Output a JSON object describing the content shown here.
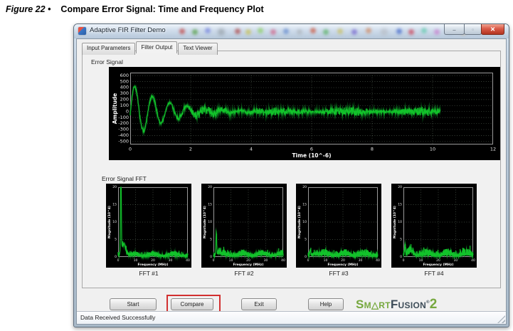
{
  "figure": {
    "label": "Figure 22 •",
    "title": "Compare Error Signal: Time and Frequency Plot"
  },
  "window": {
    "title": "Adaptive FIR Filter Demo",
    "controls": {
      "minimize": "–",
      "maximize": "▫",
      "close": "✕"
    },
    "tabs": [
      {
        "label": "Input Parameters",
        "active": false
      },
      {
        "label": "Filter Output",
        "active": true
      },
      {
        "label": "Text Viewer",
        "active": false
      }
    ],
    "sections": {
      "time_plot_label": "Error Signal",
      "fft_label": "Error Signal FFT"
    },
    "fft_captions": [
      "FFT #1",
      "FFT #2",
      "FFT #3",
      "FFT #4"
    ],
    "buttons": {
      "start": "Start",
      "compare": "Compare",
      "exit": "Exit",
      "help": "Help",
      "highlight_color": "#d23030"
    },
    "logo": {
      "sm": "Sm",
      "tri": "△",
      "rt": "rt",
      "fusion": "Fusion",
      "reg": "®",
      "two": "2",
      "green": "#76a83e",
      "dark": "#3e4d59"
    },
    "statusbar": {
      "text": "Data Received Successfully"
    }
  },
  "chart_data": [
    {
      "id": "error-signal-time",
      "type": "line",
      "title": "Error Signal",
      "xlabel": "Time (10^-6)",
      "ylabel": "Amplitude",
      "xlim": [
        0,
        12
      ],
      "ylim": [
        -550,
        650
      ],
      "xticks": [
        0,
        2,
        4,
        6,
        8,
        10,
        12
      ],
      "yticks": [
        600,
        500,
        400,
        300,
        200,
        100,
        0,
        -100,
        -200,
        -300,
        -400,
        -500
      ],
      "grid": true,
      "legend_position": "none",
      "bg": "#000000",
      "line_color": "#12c22a",
      "signal": {
        "kind": "decaying_oscillation",
        "start_peak": 480,
        "period": 0.58,
        "decay_tau": 1.1,
        "noise_amp": 85,
        "phase": -0.1,
        "x_start": 0,
        "x_end": 10.25,
        "seed": 7
      },
      "envelope_points": {
        "x": [
          0.15,
          0.44,
          0.73,
          1.3,
          2.0,
          3.0,
          10.2
        ],
        "peak_abs": [
          420,
          320,
          247,
          150,
          110,
          95,
          90
        ]
      }
    },
    {
      "id": "fft1",
      "type": "line",
      "title": "FFT #1",
      "compact": true,
      "xlabel": "Frequency (MHz)",
      "ylabel": "Magnitude (10^4)",
      "xlim": [
        0,
        40
      ],
      "ylim": [
        0,
        20
      ],
      "xticks": [
        0,
        10,
        20,
        30,
        40
      ],
      "yticks": [
        0,
        5,
        10,
        15,
        20
      ],
      "grid": true,
      "bg": "#000000",
      "line_color": "#12c22a",
      "signal": {
        "kind": "fft",
        "spike_freq": 1.6,
        "spike_mag": 26,
        "secondary_freq": 3.2,
        "secondary_mag": 3.4,
        "noise_floor": 0.7,
        "seed": 3
      }
    },
    {
      "id": "fft2",
      "type": "line",
      "title": "FFT #2",
      "compact": true,
      "xlabel": "Frequency (MHz)",
      "ylabel": "Magnitude (10^4)",
      "xlim": [
        0,
        40
      ],
      "ylim": [
        0,
        20
      ],
      "xticks": [
        0,
        10,
        20,
        30,
        40
      ],
      "yticks": [
        0,
        5,
        10,
        15,
        20
      ],
      "grid": true,
      "bg": "#000000",
      "line_color": "#12c22a",
      "signal": {
        "kind": "fft",
        "spike_freq": 1.6,
        "spike_mag": 6.2,
        "secondary_freq": 3.0,
        "secondary_mag": 0.6,
        "noise_floor": 0.85,
        "seed": 5
      }
    },
    {
      "id": "fft3",
      "type": "line",
      "title": "FFT #3",
      "compact": true,
      "xlabel": "Frequency (MHz)",
      "ylabel": "Magnitude (10^4)",
      "xlim": [
        0,
        40
      ],
      "ylim": [
        0,
        20
      ],
      "xticks": [
        0,
        10,
        20,
        30,
        40
      ],
      "yticks": [
        0,
        5,
        10,
        15,
        20
      ],
      "grid": true,
      "bg": "#000000",
      "line_color": "#12c22a",
      "signal": {
        "kind": "fft",
        "spike_freq": 1.2,
        "spike_mag": 1.4,
        "secondary_freq": 4.0,
        "secondary_mag": 0.5,
        "noise_floor": 0.95,
        "seed": 9
      }
    },
    {
      "id": "fft4",
      "type": "line",
      "title": "FFT #4",
      "compact": true,
      "xlabel": "Frequency (MHz)",
      "ylabel": "Magnitude (10^4)",
      "xlim": [
        0,
        40
      ],
      "ylim": [
        0,
        20
      ],
      "xticks": [
        0,
        10,
        20,
        30,
        40
      ],
      "yticks": [
        0,
        5,
        10,
        15,
        20
      ],
      "grid": true,
      "bg": "#000000",
      "line_color": "#12c22a",
      "signal": {
        "kind": "fft",
        "spike_freq": 0.9,
        "spike_mag": 3.0,
        "secondary_freq": 4.5,
        "secondary_mag": 1.0,
        "noise_floor": 1.0,
        "seed": 13
      }
    }
  ]
}
